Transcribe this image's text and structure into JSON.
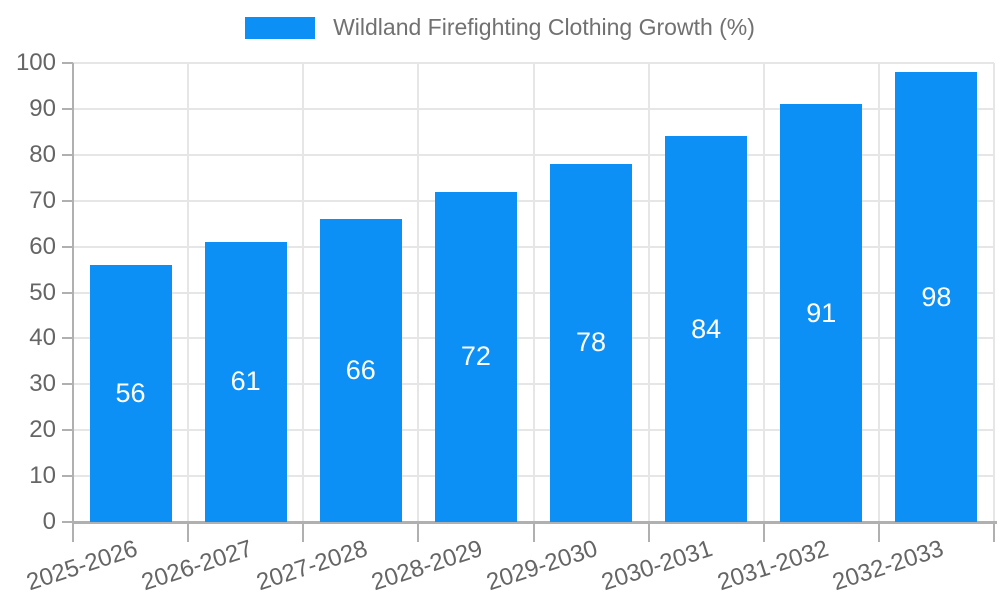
{
  "chart_data": {
    "type": "bar",
    "title": "",
    "legend": {
      "label": "Wildland Firefighting Clothing Growth (%)",
      "position": "top-center"
    },
    "categories": [
      "2025-2026",
      "2026-2027",
      "2027-2028",
      "2028-2029",
      "2029-2030",
      "2030-2031",
      "2031-2032",
      "2032-2033"
    ],
    "series": [
      {
        "name": "Wildland Firefighting Clothing Growth (%)",
        "values": [
          56,
          61,
          66,
          72,
          78,
          84,
          91,
          98
        ]
      }
    ],
    "xlabel": "",
    "ylabel": "",
    "ylim": [
      0,
      100
    ],
    "yticks": [
      0,
      10,
      20,
      30,
      40,
      50,
      60,
      70,
      80,
      90,
      100
    ],
    "grid": true,
    "value_label_position": "inside-center",
    "x_tick_label_rotation_deg": -18,
    "colors": {
      "bar": "#0d90f5",
      "grid": "#e6e6e6",
      "axis": "#b0b0b0",
      "tick_label": "#656565",
      "legend_text": "#717171",
      "value_label": "#ffffff",
      "background": "#ffffff"
    }
  }
}
